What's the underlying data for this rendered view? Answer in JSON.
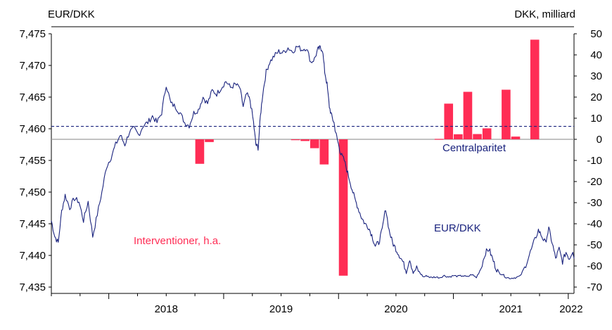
{
  "chart_data": {
    "type": "bar+line",
    "left_axis_title": "EUR/DKK",
    "right_axis_title": "DKK, milliard",
    "left_ylim": [
      7.435,
      7.475
    ],
    "left_ticks": [
      "7,475",
      "7,470",
      "7,465",
      "7,460",
      "7,455",
      "7,450",
      "7,445",
      "7,440",
      "7,435"
    ],
    "left_tick_values": [
      7.475,
      7.47,
      7.465,
      7.46,
      7.455,
      7.45,
      7.445,
      7.44,
      7.435
    ],
    "right_ylim": [
      -70,
      50
    ],
    "right_ticks": [
      "50",
      "40",
      "30",
      "20",
      "10",
      "0",
      "-10",
      "-20",
      "-30",
      "-40",
      "-50",
      "-60",
      "-70"
    ],
    "right_tick_values": [
      50,
      40,
      30,
      20,
      10,
      0,
      -10,
      -20,
      -30,
      -40,
      -50,
      -60,
      -70
    ],
    "x_categories": [
      "2018",
      "2019",
      "2020",
      "2021",
      "2022"
    ],
    "xlim": [
      2017.5,
      2022.05
    ],
    "central_parity": 7.46038,
    "central_parity_label": "Centralparitet",
    "interventions_label": "Interventioner, h.a.",
    "line_label": "EUR/DKK",
    "interventions": [
      {
        "month": "2018-10",
        "value": -11.6
      },
      {
        "month": "2018-11",
        "value": -1.3
      },
      {
        "month": "2019-08",
        "value": -0.3
      },
      {
        "month": "2019-09",
        "value": -0.8
      },
      {
        "month": "2019-10",
        "value": -4.2
      },
      {
        "month": "2019-11",
        "value": -11.9
      },
      {
        "month": "2020-01",
        "value": -64.6
      },
      {
        "month": "2020-11",
        "value": 0.2
      },
      {
        "month": "2020-12",
        "value": 16.9
      },
      {
        "month": "2021-01",
        "value": 2.4
      },
      {
        "month": "2021-02",
        "value": 22.5
      },
      {
        "month": "2021-03",
        "value": 2.5
      },
      {
        "month": "2021-04",
        "value": 5.2
      },
      {
        "month": "2021-06",
        "value": 23.5
      },
      {
        "month": "2021-07",
        "value": 1.3
      },
      {
        "month": "2021-09",
        "value": 47.2
      }
    ],
    "eurdkk": [
      [
        2017.5,
        7.4455
      ],
      [
        2017.53,
        7.443
      ],
      [
        2017.56,
        7.442
      ],
      [
        2017.59,
        7.447
      ],
      [
        2017.62,
        7.4495
      ],
      [
        2017.66,
        7.4475
      ],
      [
        2017.7,
        7.449
      ],
      [
        2017.74,
        7.4485
      ],
      [
        2017.78,
        7.4455
      ],
      [
        2017.82,
        7.4485
      ],
      [
        2017.86,
        7.443
      ],
      [
        2017.9,
        7.4465
      ],
      [
        2017.94,
        7.45
      ],
      [
        2017.98,
        7.454
      ],
      [
        2018.02,
        7.4555
      ],
      [
        2018.06,
        7.4575
      ],
      [
        2018.1,
        7.459
      ],
      [
        2018.14,
        7.4575
      ],
      [
        2018.18,
        7.4595
      ],
      [
        2018.22,
        7.46
      ],
      [
        2018.26,
        7.459
      ],
      [
        2018.3,
        7.4605
      ],
      [
        2018.34,
        7.461
      ],
      [
        2018.38,
        7.462
      ],
      [
        2018.42,
        7.461
      ],
      [
        2018.46,
        7.4625
      ],
      [
        2018.5,
        7.467
      ],
      [
        2018.54,
        7.464
      ],
      [
        2018.58,
        7.4635
      ],
      [
        2018.62,
        7.4625
      ],
      [
        2018.66,
        7.461
      ],
      [
        2018.7,
        7.4605
      ],
      [
        2018.74,
        7.4625
      ],
      [
        2018.78,
        7.463
      ],
      [
        2018.82,
        7.465
      ],
      [
        2018.86,
        7.464
      ],
      [
        2018.9,
        7.466
      ],
      [
        2018.94,
        7.4655
      ],
      [
        2018.98,
        7.4665
      ],
      [
        2019.02,
        7.4675
      ],
      [
        2019.06,
        7.4665
      ],
      [
        2019.1,
        7.467
      ],
      [
        2019.14,
        7.4665
      ],
      [
        2019.17,
        7.4635
      ],
      [
        2019.2,
        7.4655
      ],
      [
        2019.23,
        7.4645
      ],
      [
        2019.26,
        7.461
      ],
      [
        2019.28,
        7.4575
      ],
      [
        2019.3,
        7.457
      ],
      [
        2019.32,
        7.462
      ],
      [
        2019.34,
        7.4655
      ],
      [
        2019.37,
        7.469
      ],
      [
        2019.4,
        7.4705
      ],
      [
        2019.44,
        7.4715
      ],
      [
        2019.48,
        7.4722
      ],
      [
        2019.52,
        7.472
      ],
      [
        2019.56,
        7.4728
      ],
      [
        2019.6,
        7.4722
      ],
      [
        2019.64,
        7.473
      ],
      [
        2019.68,
        7.4725
      ],
      [
        2019.72,
        7.4728
      ],
      [
        2019.76,
        7.4705
      ],
      [
        2019.79,
        7.471
      ],
      [
        2019.82,
        7.4725
      ],
      [
        2019.84,
        7.4728
      ],
      [
        2019.86,
        7.4725
      ],
      [
        2019.88,
        7.469
      ],
      [
        2019.9,
        7.467
      ],
      [
        2019.92,
        7.4635
      ],
      [
        2019.94,
        7.462
      ],
      [
        2019.96,
        7.461
      ],
      [
        2019.98,
        7.459
      ],
      [
        2020.0,
        7.4575
      ],
      [
        2020.02,
        7.456
      ],
      [
        2020.05,
        7.455
      ],
      [
        2020.08,
        7.453
      ],
      [
        2020.11,
        7.451
      ],
      [
        2020.14,
        7.449
      ],
      [
        2020.17,
        7.4475
      ],
      [
        2020.2,
        7.446
      ],
      [
        2020.23,
        7.445
      ],
      [
        2020.26,
        7.4445
      ],
      [
        2020.29,
        7.4432
      ],
      [
        2020.32,
        7.4415
      ],
      [
        2020.35,
        7.442
      ],
      [
        2020.38,
        7.444
      ],
      [
        2020.41,
        7.4475
      ],
      [
        2020.44,
        7.444
      ],
      [
        2020.47,
        7.442
      ],
      [
        2020.5,
        7.441
      ],
      [
        2020.53,
        7.44
      ],
      [
        2020.56,
        7.439
      ],
      [
        2020.59,
        7.4375
      ],
      [
        2020.62,
        7.4395
      ],
      [
        2020.65,
        7.4372
      ],
      [
        2020.68,
        7.438
      ],
      [
        2020.71,
        7.4372
      ],
      [
        2020.74,
        7.4366
      ],
      [
        2020.77,
        7.4368
      ],
      [
        2020.8,
        7.4365
      ],
      [
        2020.84,
        7.4366
      ],
      [
        2020.88,
        7.4365
      ],
      [
        2020.92,
        7.4368
      ],
      [
        2020.96,
        7.4366
      ],
      [
        2021.0,
        7.4368
      ],
      [
        2021.04,
        7.4367
      ],
      [
        2021.08,
        7.4368
      ],
      [
        2021.12,
        7.4366
      ],
      [
        2021.16,
        7.437
      ],
      [
        2021.2,
        7.4365
      ],
      [
        2021.24,
        7.438
      ],
      [
        2021.28,
        7.4405
      ],
      [
        2021.31,
        7.441
      ],
      [
        2021.34,
        7.4395
      ],
      [
        2021.37,
        7.438
      ],
      [
        2021.4,
        7.4372
      ],
      [
        2021.43,
        7.437
      ],
      [
        2021.46,
        7.4365
      ],
      [
        2021.5,
        7.4364
      ],
      [
        2021.54,
        7.4365
      ],
      [
        2021.58,
        7.4367
      ],
      [
        2021.62,
        7.438
      ],
      [
        2021.66,
        7.44
      ],
      [
        2021.7,
        7.442
      ],
      [
        2021.74,
        7.444
      ],
      [
        2021.77,
        7.443
      ],
      [
        2021.8,
        7.442
      ],
      [
        2021.83,
        7.4442
      ],
      [
        2021.86,
        7.442
      ],
      [
        2021.89,
        7.4395
      ],
      [
        2021.92,
        7.441
      ],
      [
        2021.95,
        7.439
      ],
      [
        2021.98,
        7.4405
      ],
      [
        2022.01,
        7.4395
      ],
      [
        2022.04,
        7.4408
      ],
      [
        2022.05,
        7.4395
      ]
    ]
  }
}
